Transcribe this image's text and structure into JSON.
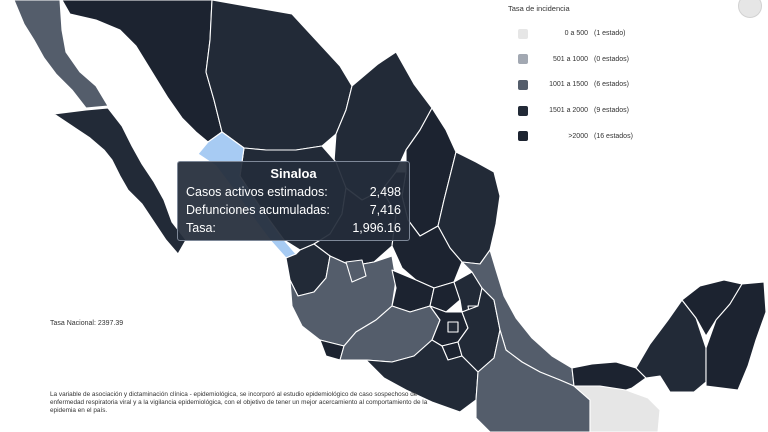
{
  "legend": {
    "title": "Tasa de incidencia",
    "items": [
      {
        "range": "0 a 500",
        "count": "(1 estado)",
        "color": "#e6e6e6"
      },
      {
        "range": "501 a 1000",
        "count": "(0 estados)",
        "color": "#a2a8b2"
      },
      {
        "range": "1001 a 1500",
        "count": "(6 estados)",
        "color": "#545d6b"
      },
      {
        "range": "1501 a 2000",
        "count": "(9 estados)",
        "color": "#222a37"
      },
      {
        "range": ">2000",
        "count": "(16 estados)",
        "color": "#1c2330"
      }
    ]
  },
  "tooltip": {
    "state": "Sinaloa",
    "rows": [
      {
        "label": "Casos activos estimados:",
        "value": "2,498"
      },
      {
        "label": "Defunciones acumuladas:",
        "value": "7,416"
      },
      {
        "label": "Tasa:",
        "value": "1,996.16"
      }
    ]
  },
  "tasa_nacional": "Tasa Nacional: 2397.39",
  "footnote": "La variable de asociación y dictaminación clínica - epidemiológica, se incorporó al estudio epidemiológico de caso sospechoso de enfermedad respiratoria viral y a la vigilancia epidemiológica, con el objetivo de tener un mejor acercamiento al comportamiento de la epidemia en el país.",
  "colors": {
    "dark": "#1c2330",
    "dark_alt": "#222a37",
    "medium": "#545d6b",
    "light": "#e6e6e6",
    "highlight": "#a7cbf3",
    "tooltip_bg": "#242c3a"
  }
}
